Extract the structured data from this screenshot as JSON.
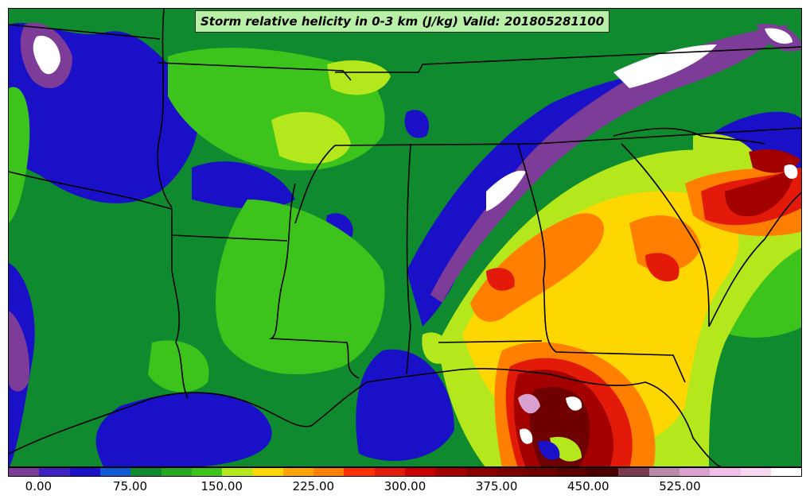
{
  "title": "Storm relative helicity in 0-3 km (J/kg) Valid: 201805281100",
  "map": {
    "base_color": "#0f8a2e",
    "palette": {
      "purple": "#7d3c98",
      "blue": "#1a10c8",
      "dark_green": "#0f8a2e",
      "green": "#3cc31c",
      "lime": "#b4e81c",
      "yellow": "#ffd700",
      "orange": "#ff7f00",
      "red": "#e31a0a",
      "dark_red": "#a30000",
      "maroon": "#6e0000",
      "pink": "#d9a0d0",
      "white": "#ffffff"
    },
    "boundary_color": "#000000"
  },
  "colorbar": {
    "colors": [
      "#7d3c98",
      "#3f1fbf",
      "#1a10c8",
      "#0f5ad2",
      "#0f8a2e",
      "#27a823",
      "#3cc31c",
      "#b4e81c",
      "#ffd700",
      "#ffa500",
      "#ff7f00",
      "#ff3000",
      "#e31a0a",
      "#c80000",
      "#a30000",
      "#8a0000",
      "#7a0000",
      "#6e0000",
      "#5a0000",
      "#4a0000",
      "#7a3a52",
      "#b98aa8",
      "#d9a0d0",
      "#f0c0e8",
      "#f8d8f0",
      "#ffffff"
    ],
    "tick_labels": [
      "0.00",
      "75.00",
      "150.00",
      "225.00",
      "300.00",
      "375.00",
      "450.00",
      "525.00"
    ],
    "tick_values": [
      0,
      75,
      150,
      225,
      300,
      375,
      450,
      525
    ],
    "range": [
      -25,
      625
    ]
  }
}
